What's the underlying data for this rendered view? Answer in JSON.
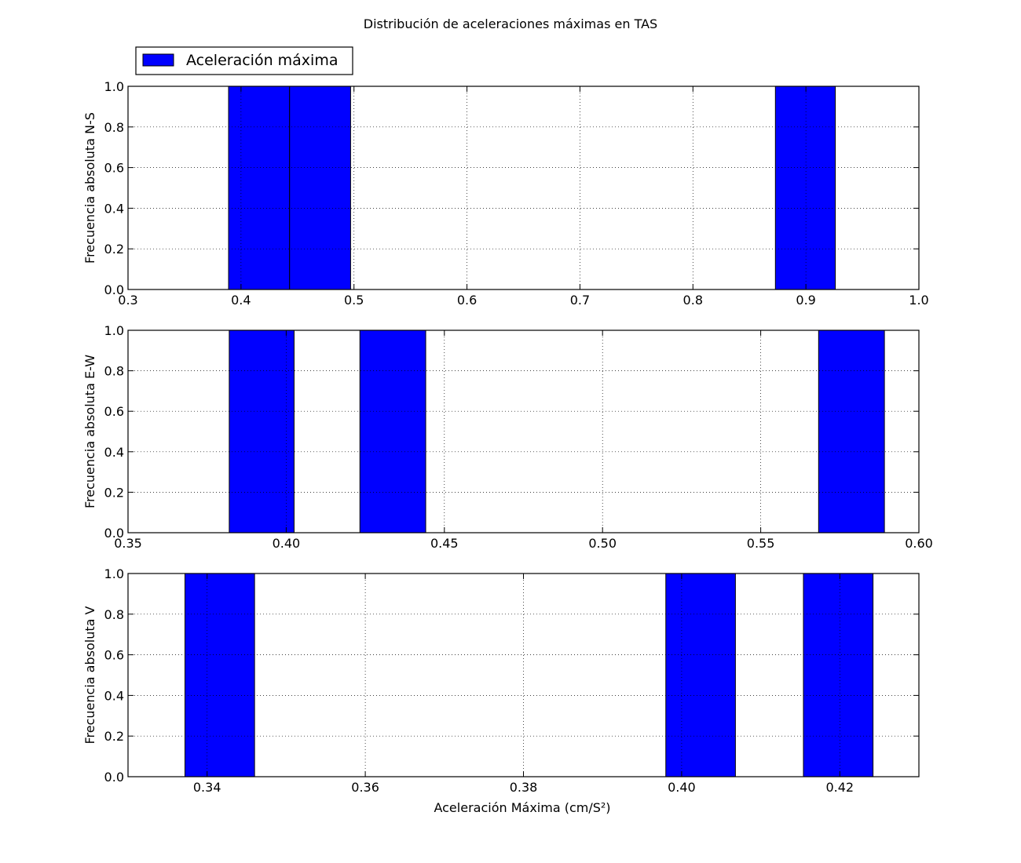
{
  "chart_data": {
    "title": "Distribución de aceleraciones máximas en TAS",
    "type": "bar",
    "legend": {
      "label": "Aceleración máxima",
      "position": "top-left",
      "color": "#0000ff"
    },
    "grid": true,
    "xlabel": "Aceleración Máxima (cm/S²)",
    "subplots": [
      {
        "ylabel": "Frecuencia absoluta N-S",
        "xlim": [
          0.3,
          1.0
        ],
        "ylim": [
          0.0,
          1.0
        ],
        "xticks": [
          "0.3",
          "0.4",
          "0.5",
          "0.6",
          "0.7",
          "0.8",
          "0.9",
          "1.0"
        ],
        "yticks": [
          "0.0",
          "0.2",
          "0.4",
          "0.6",
          "0.8",
          "1.0"
        ],
        "bars": [
          {
            "x0": 0.389,
            "x1": 0.443,
            "value": 1.0
          },
          {
            "x0": 0.443,
            "x1": 0.497,
            "value": 1.0
          },
          {
            "x0": 0.873,
            "x1": 0.926,
            "value": 1.0
          }
        ]
      },
      {
        "ylabel": "Frecuencia absoluta E-W",
        "xlim": [
          0.35,
          0.6
        ],
        "ylim": [
          0.0,
          1.0
        ],
        "xticks": [
          "0.35",
          "0.40",
          "0.45",
          "0.50",
          "0.55",
          "0.60"
        ],
        "yticks": [
          "0.0",
          "0.2",
          "0.4",
          "0.6",
          "0.8",
          "1.0"
        ],
        "bars": [
          {
            "x0": 0.382,
            "x1": 0.4025,
            "value": 1.0
          },
          {
            "x0": 0.4233,
            "x1": 0.4441,
            "value": 1.0
          },
          {
            "x0": 0.5683,
            "x1": 0.5891,
            "value": 1.0
          }
        ]
      },
      {
        "ylabel": "Frecuencia absoluta V",
        "xlim": [
          0.33,
          0.43
        ],
        "ylim": [
          0.0,
          1.0
        ],
        "xticks": [
          "0.34",
          "0.36",
          "0.38",
          "0.40",
          "0.42"
        ],
        "yticks": [
          "0.0",
          "0.2",
          "0.4",
          "0.6",
          "0.8",
          "1.0"
        ],
        "bars": [
          {
            "x0": 0.3372,
            "x1": 0.346,
            "value": 1.0
          },
          {
            "x0": 0.398,
            "x1": 0.4068,
            "value": 1.0
          },
          {
            "x0": 0.4154,
            "x1": 0.4242,
            "value": 1.0
          }
        ]
      }
    ]
  }
}
